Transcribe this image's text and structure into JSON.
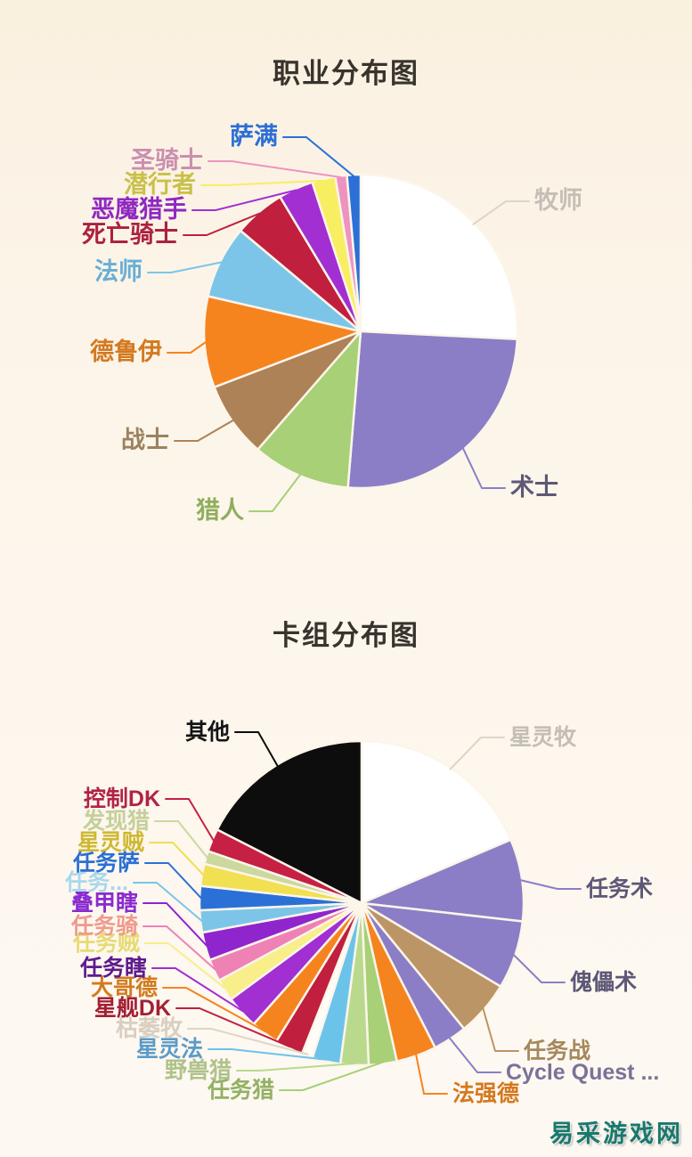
{
  "page": {
    "background": "#fcf5ea",
    "watermark": {
      "text": "易采游戏网",
      "color": "#17796c"
    }
  },
  "chart_data": [
    {
      "type": "pie",
      "title": "职业分布图",
      "units": "percent_estimated",
      "direction": "clockwise",
      "start_angle": "12-o'clock",
      "legend_position": "none",
      "labels_style": "outside-callout",
      "slices": [
        {
          "label": "牧师",
          "value": 25.8,
          "color": "#ffffff",
          "label_color": "#c4beb4",
          "line_color": "#ddd5c7"
        },
        {
          "label": "术士",
          "value": 25.5,
          "color": "#8b7ec6",
          "label_color": "#5e5776"
        },
        {
          "label": "猎人",
          "value": 10.1,
          "color": "#a7d077",
          "label_color": "#8fae5c"
        },
        {
          "label": "战士",
          "value": 7.8,
          "color": "#ae8257",
          "label_color": "#9c8261"
        },
        {
          "label": "德鲁伊",
          "value": 9.4,
          "color": "#f5841f",
          "label_color": "#d4791f"
        },
        {
          "label": "法师",
          "value": 7.5,
          "color": "#7cc5e8",
          "label_color": "#69aed4"
        },
        {
          "label": "死亡骑士",
          "value": 5.3,
          "color": "#c01f3e",
          "label_color": "#ab2240"
        },
        {
          "label": "恶魔猎手",
          "value": 3.6,
          "color": "#a22fd2",
          "label_color": "#8f28c0"
        },
        {
          "label": "潜行者",
          "value": 2.4,
          "color": "#f8ee61",
          "label_color": "#c9c048"
        },
        {
          "label": "圣骑士",
          "value": 1.2,
          "color": "#ee93bf",
          "label_color": "#cb8fae"
        },
        {
          "label": "萨满",
          "value": 1.4,
          "color": "#2b70d6",
          "label_color": "#2b6fd4"
        }
      ]
    },
    {
      "type": "pie",
      "title": "卡组分布图",
      "units": "percent_estimated",
      "direction": "clockwise",
      "start_angle": "12-o'clock",
      "legend_position": "none",
      "labels_style": "outside-callout",
      "slices": [
        {
          "label": "星灵牧",
          "value": 18.6,
          "color": "#ffffff",
          "label_color": "#c4beb4",
          "line_color": "#ddd5c7"
        },
        {
          "label": "任务术",
          "value": 8.2,
          "color": "#8b7ec6",
          "label_color": "#5e5776"
        },
        {
          "label": "傀儡术",
          "value": 6.8,
          "color": "#8b7ec6",
          "label_color": "#5e5776"
        },
        {
          "label": "任务战",
          "value": 5.5,
          "color": "#bb9566",
          "label_color": "#a5885c"
        },
        {
          "label": "Cycle Quest ...",
          "value": 3.4,
          "color": "#8b7ec6",
          "label_color": "#7b7299"
        },
        {
          "label": "法强德",
          "value": 4.0,
          "color": "#f5841f",
          "label_color": "#d4791f"
        },
        {
          "label": "任务猎",
          "value": 2.8,
          "color": "#a7d077",
          "label_color": "#93b163"
        },
        {
          "label": "野兽猎",
          "value": 2.8,
          "color": "#b9da8d",
          "label_color": "#afc28a"
        },
        {
          "label": "星灵法",
          "value": 2.8,
          "color": "#6cc3ea",
          "label_color": "#5b9bc8"
        },
        {
          "label": "枯萎牧",
          "value": 1.1,
          "color": "#fdfcf7",
          "label_color": "#d8cfc1",
          "line_color": "#ddd5c7"
        },
        {
          "label": "星舰DK",
          "value": 2.8,
          "color": "#c01f3e",
          "label_color": "#a31f36"
        },
        {
          "label": "大哥德",
          "value": 2.8,
          "color": "#f5841f",
          "label_color": "#d27b1e"
        },
        {
          "label": "任务瞎",
          "value": 3.3,
          "color": "#a22fd2",
          "label_color": "#5e1b8e"
        },
        {
          "label": "任务贼",
          "value": 2.2,
          "color": "#f8ee8a",
          "label_color": "#e6db74"
        },
        {
          "label": "任务骑",
          "value": 2.2,
          "color": "#ee82b4",
          "label_color": "#ee9b8d"
        },
        {
          "label": "叠甲瞎",
          "value": 2.8,
          "color": "#8f25cc",
          "label_color": "#8a2bd0"
        },
        {
          "label": "任务...",
          "value": 2.2,
          "color": "#7cc5e8",
          "label_color": "#a9d7ec"
        },
        {
          "label": "任务萨",
          "value": 2.4,
          "color": "#2b70d6",
          "label_color": "#2b6fd4"
        },
        {
          "label": "星灵贼",
          "value": 2.2,
          "color": "#f0e052",
          "label_color": "#cfb832"
        },
        {
          "label": "发现猎",
          "value": 1.3,
          "color": "#ccd89e",
          "label_color": "#c5cf9b"
        },
        {
          "label": "控制DK",
          "value": 2.3,
          "color": "#c62045",
          "label_color": "#b12347"
        },
        {
          "label": "其他",
          "value": 17.5,
          "color": "#0d0d0d",
          "label_color": "#141414"
        }
      ]
    }
  ]
}
